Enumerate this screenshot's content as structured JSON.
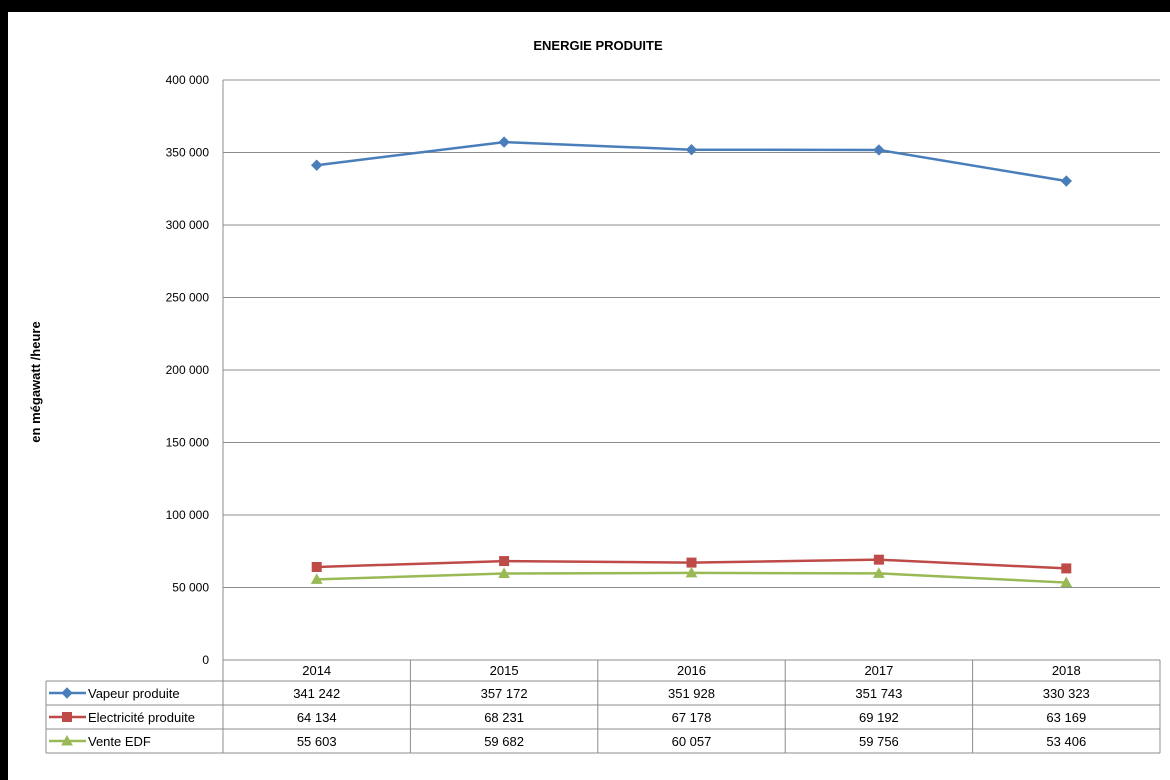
{
  "chart_data": {
    "type": "line",
    "title": "ENERGIE PRODUITE",
    "xlabel": "",
    "ylabel": "en mégawatt /heure",
    "ylim": [
      0,
      400000
    ],
    "yticks": [
      "0",
      "50 000",
      "100 000",
      "150 000",
      "200 000",
      "250 000",
      "300 000",
      "350 000",
      "400 000"
    ],
    "grid": true,
    "legend": "data-table",
    "categories": [
      "2014",
      "2015",
      "2016",
      "2017",
      "2018"
    ],
    "series": [
      {
        "name": "Vapeur produite",
        "color": "#4a7ebb",
        "marker": "diamond",
        "values": [
          341242,
          357172,
          351928,
          351743,
          330323
        ],
        "labels": [
          "341 242",
          "357 172",
          "351 928",
          "351 743",
          "330 323"
        ]
      },
      {
        "name": "Electricité produite",
        "color": "#be4b48",
        "marker": "square",
        "values": [
          64134,
          68231,
          67178,
          69192,
          63169
        ],
        "labels": [
          "64 134",
          "68 231",
          "67 178",
          "69 192",
          "63 169"
        ]
      },
      {
        "name": "Vente EDF",
        "color": "#98b954",
        "marker": "triangle",
        "values": [
          55603,
          59682,
          60057,
          59756,
          53406
        ],
        "labels": [
          "55 603",
          "59 682",
          "60 057",
          "59 756",
          "53 406"
        ]
      }
    ]
  }
}
